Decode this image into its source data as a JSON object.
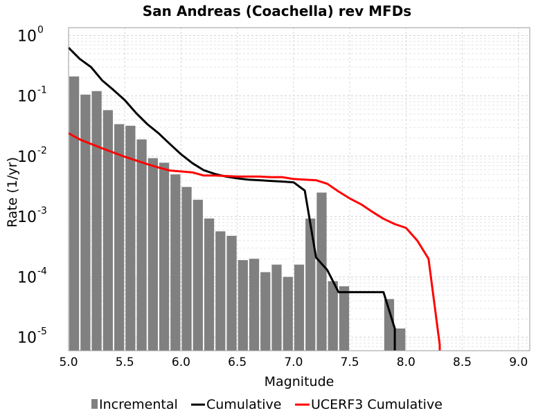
{
  "chart_data": {
    "type": "bar",
    "title": "San Andreas (Coachella) rev MFDs",
    "xlabel": "Magnitude",
    "ylabel": "Rate (1/yr)",
    "xlim": [
      5.0,
      9.1
    ],
    "ylim": [
      6e-06,
      1.35
    ],
    "yscale": "log",
    "grid": true,
    "legend_position": "bottom",
    "xticks": [
      "5.0",
      "5.5",
      "6.0",
      "6.5",
      "7.0",
      "7.5",
      "8.0",
      "8.5",
      "9.0"
    ],
    "yticks": [
      {
        "base": "10",
        "exp": "0",
        "value": 1
      },
      {
        "base": "10",
        "exp": "-1",
        "value": 0.1
      },
      {
        "base": "10",
        "exp": "-2",
        "value": 0.01
      },
      {
        "base": "10",
        "exp": "-3",
        "value": 0.001
      },
      {
        "base": "10",
        "exp": "-4",
        "value": 0.0001
      },
      {
        "base": "10",
        "exp": "-5",
        "value": 1e-05
      }
    ],
    "series": [
      {
        "name": "Incremental",
        "type": "bar",
        "color": "#808080",
        "x": [
          5.05,
          5.15,
          5.25,
          5.35,
          5.45,
          5.55,
          5.65,
          5.75,
          5.85,
          5.95,
          6.05,
          6.15,
          6.25,
          6.35,
          6.45,
          6.55,
          6.65,
          6.75,
          6.85,
          6.95,
          7.05,
          7.15,
          7.25,
          7.35,
          7.45,
          7.85,
          7.95
        ],
        "values": [
          0.21,
          0.105,
          0.12,
          0.058,
          0.034,
          0.032,
          0.019,
          0.0093,
          0.0078,
          0.005,
          0.0031,
          0.0019,
          0.00093,
          0.00057,
          0.00048,
          0.00019,
          0.0002,
          0.00012,
          0.00016,
          0.0001,
          0.00016,
          0.00093,
          0.0025,
          8.5e-05,
          7e-05,
          4.3e-05,
          1.4e-05
        ]
      },
      {
        "name": "Cumulative",
        "type": "line",
        "color": "#000000",
        "x": [
          5.0,
          5.1,
          5.2,
          5.3,
          5.4,
          5.5,
          5.6,
          5.7,
          5.8,
          5.9,
          6.0,
          6.1,
          6.2,
          6.3,
          6.4,
          6.5,
          6.6,
          6.7,
          6.8,
          6.9,
          7.0,
          7.1,
          7.2,
          7.3,
          7.4,
          7.5,
          7.6,
          7.7,
          7.8,
          7.9,
          7.9
        ],
        "values": [
          0.63,
          0.41,
          0.3,
          0.18,
          0.125,
          0.085,
          0.052,
          0.034,
          0.024,
          0.016,
          0.0108,
          0.0077,
          0.0059,
          0.0051,
          0.0046,
          0.0043,
          0.0041,
          0.004,
          0.0039,
          0.0038,
          0.0037,
          0.0027,
          0.00021,
          0.00013,
          5.6e-05,
          5.6e-05,
          5.6e-05,
          5.6e-05,
          5.6e-05,
          1.4e-05,
          6e-06
        ]
      },
      {
        "name": "UCERF3 Cumulative",
        "type": "line",
        "color": "#ff0000",
        "x": [
          5.0,
          5.1,
          5.2,
          5.3,
          5.4,
          5.5,
          5.6,
          5.7,
          5.8,
          5.9,
          6.0,
          6.1,
          6.2,
          6.3,
          6.4,
          6.5,
          6.6,
          6.7,
          6.8,
          6.9,
          7.0,
          7.1,
          7.2,
          7.3,
          7.4,
          7.5,
          7.6,
          7.7,
          7.8,
          7.9,
          8.0,
          8.1,
          8.2,
          8.3,
          8.3
        ],
        "values": [
          0.024,
          0.019,
          0.016,
          0.0135,
          0.0115,
          0.0098,
          0.0085,
          0.0074,
          0.0065,
          0.0058,
          0.0056,
          0.0054,
          0.0048,
          0.0048,
          0.0047,
          0.0046,
          0.0046,
          0.0046,
          0.0045,
          0.0045,
          0.0042,
          0.0041,
          0.004,
          0.0035,
          0.0026,
          0.002,
          0.0016,
          0.0012,
          0.00092,
          0.00075,
          0.00065,
          0.0004,
          0.0002,
          7.5e-06,
          6e-06
        ]
      }
    ]
  }
}
